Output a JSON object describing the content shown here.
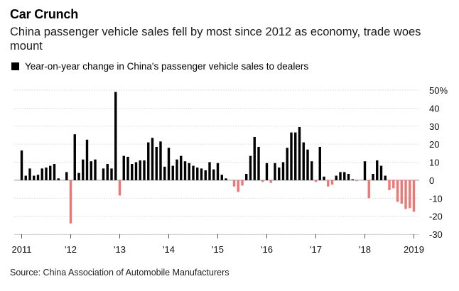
{
  "header": {
    "title": "Car Crunch",
    "subtitle": "China passenger vehicle sales fell by most since 2012 as economy, trade woes mount",
    "legend_label": "Year-on-year change in China's passenger vehicle sales to dealers"
  },
  "footer": {
    "source": "Source: China Association of Automobile Manufacturers"
  },
  "colors": {
    "positive": "#000000",
    "negative": "#f07575",
    "grid": "#cccccc",
    "zero_line": "#999999"
  },
  "chart_data": {
    "type": "bar",
    "title": "Car Crunch",
    "subtitle": "China passenger vehicle sales fell by most since 2012 as economy, trade woes mount",
    "legend": [
      "Year-on-year change in China's passenger vehicle sales to dealers"
    ],
    "legend_placement": "top-left",
    "y_axis_position": "right",
    "grid": true,
    "ylim": [
      -30,
      50
    ],
    "yticks": [
      -30,
      -20,
      -10,
      0,
      10,
      20,
      30,
      40,
      50
    ],
    "ytick_labels": [
      "-30",
      "-20",
      "-10",
      "0",
      "10",
      "20",
      "30",
      "40",
      "50%"
    ],
    "xtick_labels": [
      {
        "label": "2011",
        "index": 0
      },
      {
        "label": "'12",
        "index": 12
      },
      {
        "label": "'13",
        "index": 24
      },
      {
        "label": "'14",
        "index": 36
      },
      {
        "label": "'15",
        "index": 48
      },
      {
        "label": "'16",
        "index": 60
      },
      {
        "label": "'17",
        "index": 72
      },
      {
        "label": "'18",
        "index": 84
      },
      {
        "label": "2019",
        "index": 96
      }
    ],
    "series": [
      {
        "values": [
          16.5,
          2.5,
          6.5,
          2.5,
          3,
          6.5,
          7,
          8,
          9,
          1,
          0,
          4.5,
          -24,
          25.5,
          4,
          11.5,
          22.5,
          10.5,
          11.5,
          0,
          6.5,
          9,
          6.5,
          49,
          -8.5,
          13.5,
          13,
          9,
          10,
          11,
          11,
          21,
          23.5,
          18.5,
          21.5,
          7.5,
          18,
          8,
          11.5,
          13.5,
          10.5,
          9.5,
          8,
          7,
          6.5,
          5.5,
          10,
          6,
          9.5,
          3,
          1,
          0,
          -3.5,
          -6.5,
          -3,
          3.5,
          13.5,
          24,
          18.5,
          -1,
          9.5,
          -1.5,
          9.5,
          7,
          10,
          18,
          26.5,
          26.5,
          29.5,
          21,
          17,
          10.5,
          -1,
          18.5,
          2,
          -3.5,
          -2.5,
          2.5,
          4.5,
          4.5,
          3.5,
          0.5,
          -0.5,
          0,
          10.5,
          -10,
          3.5,
          11,
          8,
          2.5,
          -5.5,
          -4.5,
          -12,
          -13,
          -16,
          -15.5,
          -17.5
        ]
      }
    ]
  }
}
